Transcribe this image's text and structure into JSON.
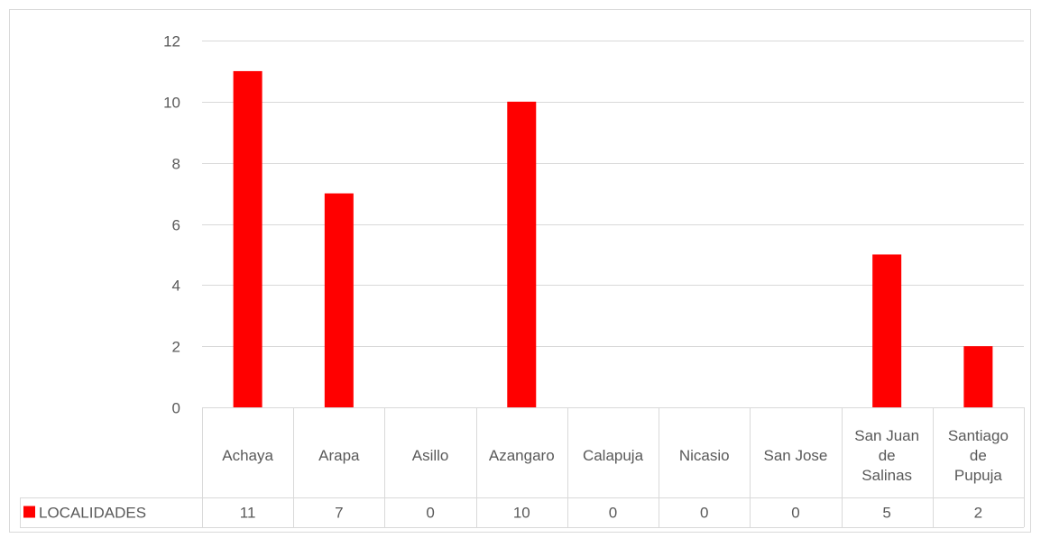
{
  "chart_data": {
    "type": "bar",
    "categories": [
      [
        "Achaya"
      ],
      [
        "Arapa"
      ],
      [
        "Asillo"
      ],
      [
        "Azangaro"
      ],
      [
        "Calapuja"
      ],
      [
        "Nicasio"
      ],
      [
        "San Jose"
      ],
      [
        "San Juan",
        "de",
        "Salinas"
      ],
      [
        "Santiago",
        "de",
        "Pupuja"
      ]
    ],
    "series": [
      {
        "name": "LOCALIDADES",
        "values": [
          11,
          7,
          0,
          10,
          0,
          0,
          0,
          5,
          2
        ],
        "color": "#ff0000"
      }
    ],
    "yticks": [
      "0",
      "2",
      "4",
      "6",
      "8",
      "10",
      "12"
    ],
    "ylim": [
      0,
      12
    ],
    "grid": true,
    "data_table": true
  }
}
